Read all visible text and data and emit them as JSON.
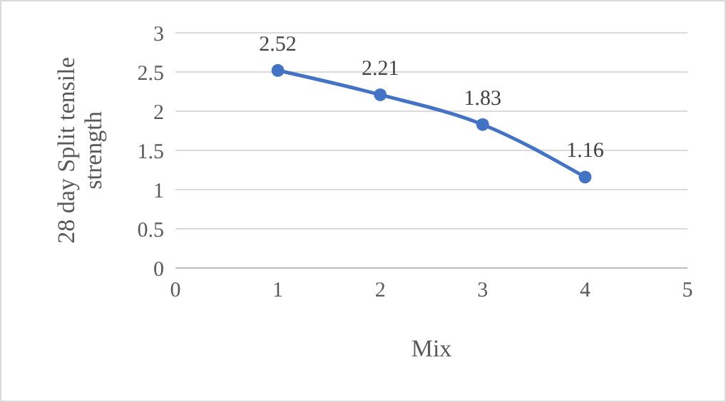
{
  "chart_data": {
    "type": "line",
    "xlabel": "Mix",
    "ylabel": "28 day Split tensile strength",
    "x": [
      1,
      2,
      3,
      4
    ],
    "series": [
      {
        "color": "#4472c4",
        "values": [
          2.52,
          2.21,
          1.83,
          1.16
        ]
      }
    ],
    "xlim": [
      0,
      5
    ],
    "xticks": [
      0,
      1,
      2,
      3,
      4,
      5
    ],
    "ylim": [
      0,
      3
    ],
    "yticks": [
      0,
      0.5,
      1,
      1.5,
      2,
      2.5,
      3
    ],
    "grid": "y",
    "marker": "circle",
    "line_style": "solid",
    "data_labels": true
  }
}
